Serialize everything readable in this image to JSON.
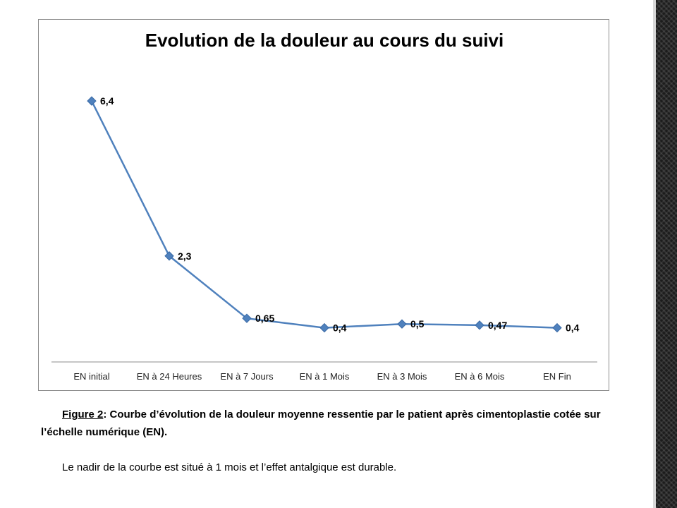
{
  "chart_data": {
    "type": "line",
    "title": "Evolution de la douleur au cours du suivi",
    "xlabel": "",
    "ylabel": "",
    "categories": [
      "EN initial",
      "EN à 24 Heures",
      "EN à 7 Jours",
      "EN à 1 Mois",
      "EN à 3 Mois",
      "EN à 6 Mois",
      "EN Fin"
    ],
    "series": [
      {
        "values": [
          6.4,
          2.3,
          0.65,
          0.4,
          0.5,
          0.47,
          0.4
        ],
        "data_labels": [
          "6,4",
          "2,3",
          "0,65",
          "0,4",
          "0,5",
          "0,47",
          "0,4"
        ]
      }
    ],
    "ylim": [
      0,
      7
    ],
    "grid": false,
    "legend": "none",
    "marker": "diamond",
    "color": "#4f81bd"
  },
  "caption": {
    "figure_ref": "Figure 2",
    "figure_text": ": Courbe d’évolution de la douleur moyenne ressentie par le patient après cimentoplastie cotée sur l’échelle numérique (EN).",
    "note": "Le nadir de la courbe est situé à 1 mois et l’effet antalgique est durable."
  }
}
